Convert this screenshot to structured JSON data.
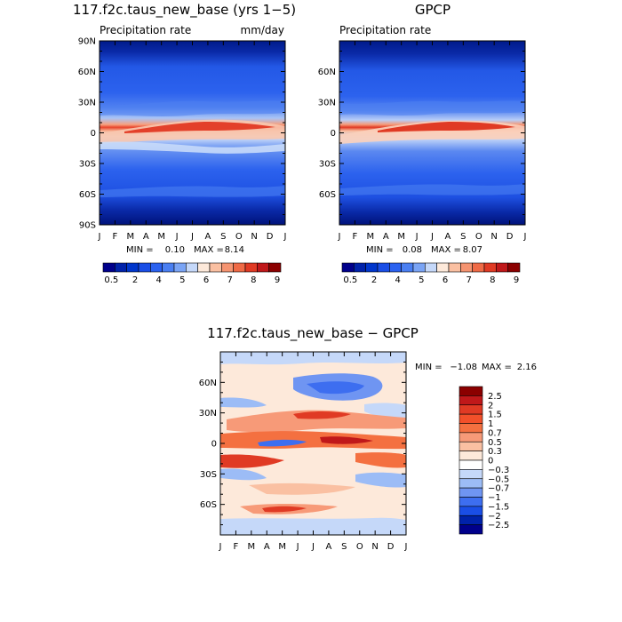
{
  "chart_data": [
    {
      "type": "heatmap",
      "id": "model",
      "title": "117.f2c.taus_new_base (yrs 1−5)",
      "subtitle_left": "Precipitation rate",
      "subtitle_right": "mm/day",
      "x_ticks": [
        "J",
        "F",
        "M",
        "A",
        "M",
        "J",
        "J",
        "A",
        "S",
        "O",
        "N",
        "D",
        "J"
      ],
      "y_ticks": [
        "90N",
        "60N",
        "30N",
        "0",
        "30S",
        "60S",
        "90S"
      ],
      "ylim": [
        -90,
        90
      ],
      "min_label": "MIN =",
      "min_value": "0.10",
      "max_label": "MAX =",
      "max_value": "8.14",
      "colorbar": {
        "levels": [
          "0.5",
          "2",
          "4",
          "5",
          "6",
          "7",
          "8",
          "9"
        ],
        "colors": [
          "#00008b",
          "#0022aa",
          "#0036cc",
          "#1a4ee6",
          "#2b62f0",
          "#4a7ff2",
          "#7aa4f5",
          "#c5d8f9",
          "#fde9da",
          "#fac0a2",
          "#f59471",
          "#ef6a46",
          "#e03a24",
          "#c0181a",
          "#8b0000"
        ]
      }
    },
    {
      "type": "heatmap",
      "id": "obs",
      "title": "GPCP",
      "subtitle_left": "Precipitation rate",
      "x_ticks": [
        "J",
        "F",
        "M",
        "A",
        "M",
        "J",
        "J",
        "A",
        "S",
        "O",
        "N",
        "D",
        "J"
      ],
      "y_ticks": [
        "60N",
        "30N",
        "0",
        "30S",
        "60S"
      ],
      "ylim": [
        -90,
        90
      ],
      "min_label": "MIN =",
      "min_value": "0.08",
      "max_label": "MAX =",
      "max_value": "8.07",
      "colorbar": {
        "levels": [
          "0.5",
          "2",
          "4",
          "5",
          "6",
          "7",
          "8",
          "9"
        ],
        "colors": [
          "#00008b",
          "#0022aa",
          "#0036cc",
          "#1a4ee6",
          "#2b62f0",
          "#4a7ff2",
          "#7aa4f5",
          "#c5d8f9",
          "#fde9da",
          "#fac0a2",
          "#f59471",
          "#ef6a46",
          "#e03a24",
          "#c0181a",
          "#8b0000"
        ]
      }
    },
    {
      "type": "heatmap",
      "id": "diff",
      "title": "117.f2c.taus_new_base − GPCP",
      "x_ticks": [
        "J",
        "F",
        "M",
        "A",
        "M",
        "J",
        "J",
        "A",
        "S",
        "O",
        "N",
        "D",
        "J"
      ],
      "y_ticks": [
        "60N",
        "30N",
        "0",
        "30S",
        "60S"
      ],
      "ylim": [
        -90,
        90
      ],
      "min_label": "MIN =",
      "min_value": "−1.08",
      "max_label": "MAX =",
      "max_value": "2.16",
      "colorbar": {
        "levels": [
          "2.5",
          "2",
          "1.5",
          "1",
          "0.7",
          "0.5",
          "0.3",
          "0",
          "−0.3",
          "−0.5",
          "−0.7",
          "−1",
          "−1.5",
          "−2",
          "−2.5"
        ],
        "colors": [
          "#8b0000",
          "#c0181a",
          "#e03a24",
          "#f2502a",
          "#f47040",
          "#f79a78",
          "#fac0a2",
          "#fde9da",
          "#ffffff",
          "#c5d8f9",
          "#9cbcf6",
          "#6f95f2",
          "#3d6ef0",
          "#1a4ee6",
          "#0022aa",
          "#00008b"
        ]
      }
    }
  ]
}
